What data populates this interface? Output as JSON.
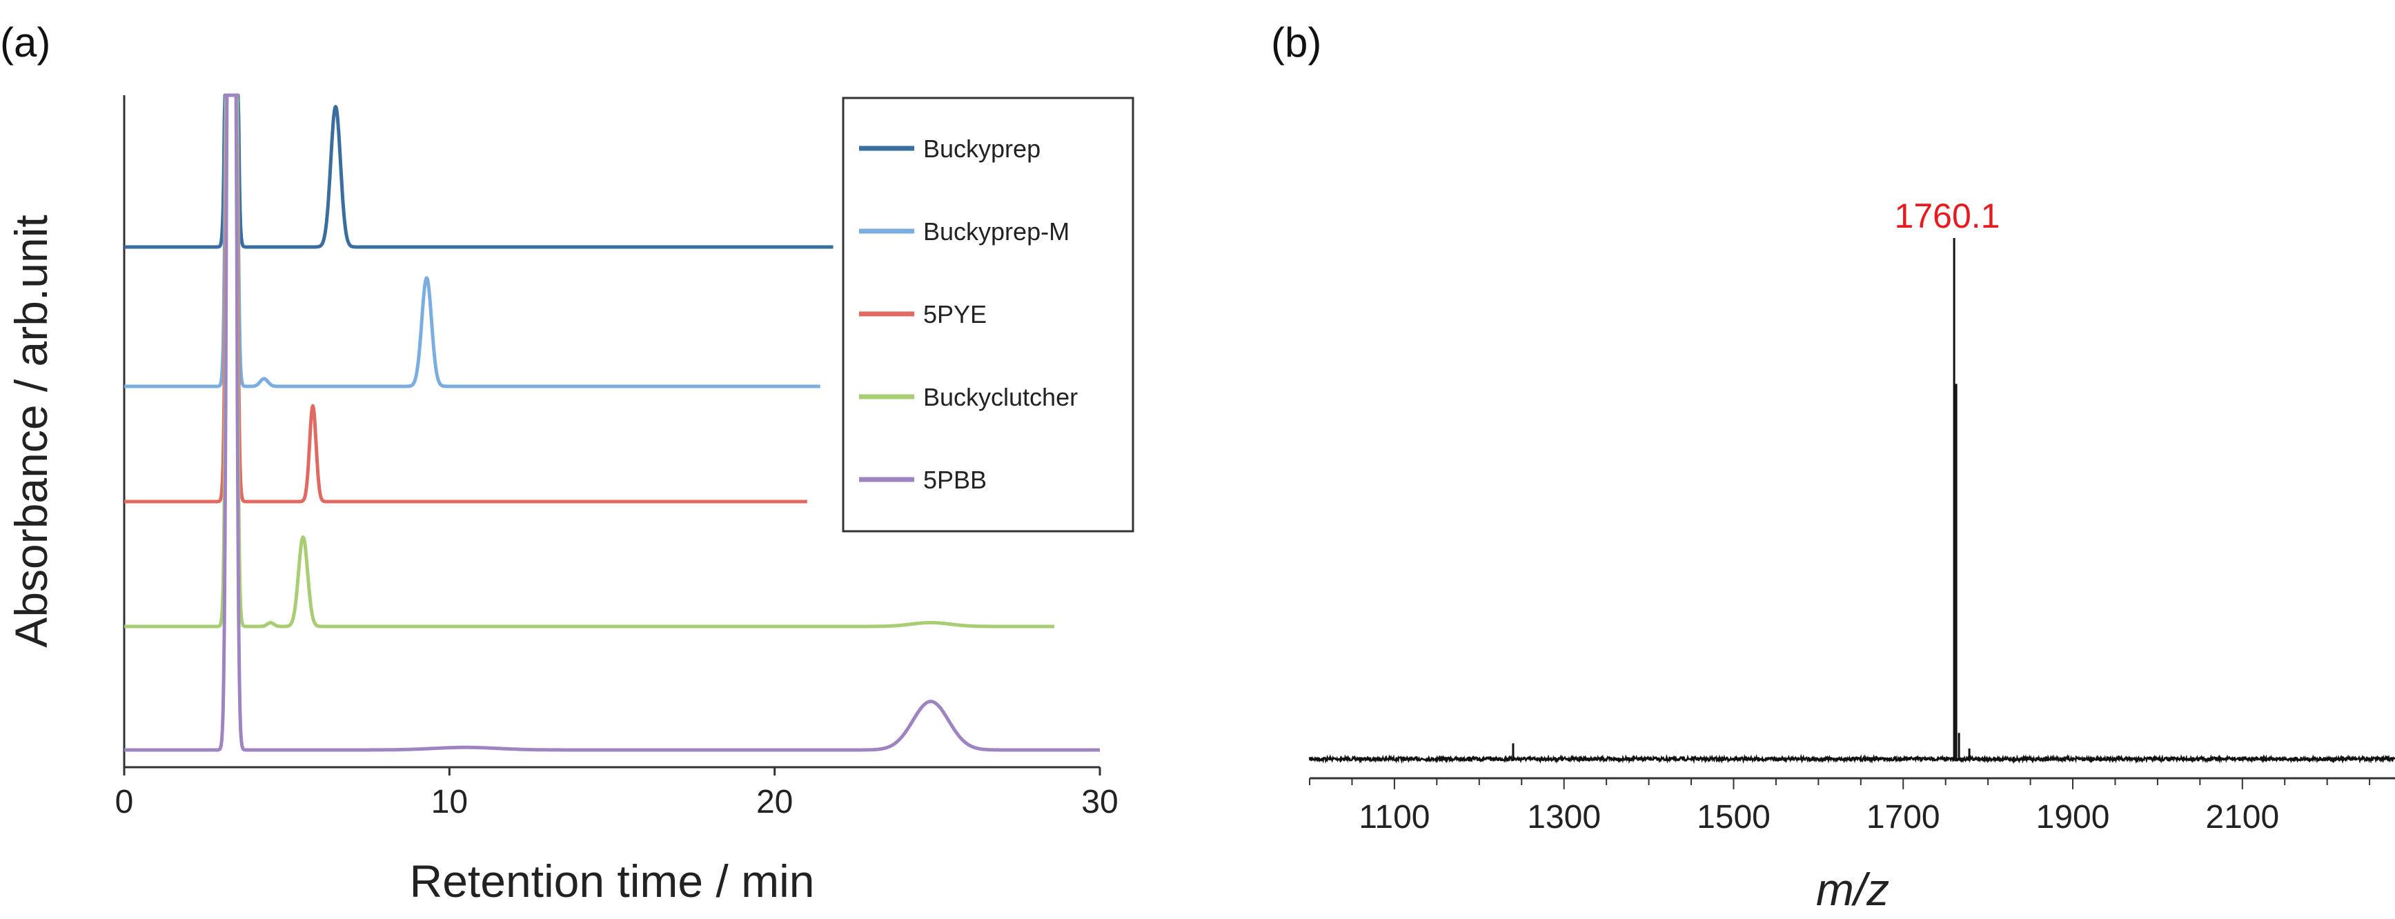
{
  "chart_data": [
    {
      "panel": "(a)",
      "type": "line",
      "title": "",
      "xlabel": "Retention time / min",
      "ylabel": "Absorbance / arb.unit",
      "xlim": [
        0,
        30
      ],
      "xticks": [
        0,
        10,
        20,
        30
      ],
      "legend_position": "top-right",
      "series": [
        {
          "name": "Buckyprep",
          "color": "#3a6e9e",
          "baseline": 4,
          "x_end": 21.8,
          "peaks": [
            {
              "x": 6.5,
              "h": 1.1,
              "w": 0.15
            }
          ]
        },
        {
          "name": "Buckyprep-M",
          "color": "#7aaee0",
          "baseline": 3,
          "x_end": 21.4,
          "peaks": [
            {
              "x": 9.3,
              "h": 0.85,
              "w": 0.15
            },
            {
              "x": 4.3,
              "h": 0.06,
              "w": 0.12
            }
          ]
        },
        {
          "name": "5PYE",
          "color": "#e06a62",
          "baseline": 2,
          "x_end": 21.0,
          "peaks": [
            {
              "x": 5.8,
              "h": 0.75,
              "w": 0.1
            }
          ]
        },
        {
          "name": "Buckyclutcher",
          "color": "#a9cd73",
          "baseline": 1,
          "x_end": 28.6,
          "peaks": [
            {
              "x": 5.5,
              "h": 0.7,
              "w": 0.14
            },
            {
              "x": 4.5,
              "h": 0.03,
              "w": 0.1
            },
            {
              "x": 24.8,
              "h": 0.03,
              "w": 0.6
            }
          ]
        },
        {
          "name": "5PBB",
          "color": "#9f84c2",
          "baseline": 0,
          "x_end": 30.0,
          "peaks": [
            {
              "x": 24.8,
              "h": 0.38,
              "w": 0.55
            },
            {
              "x": 10.5,
              "h": 0.02,
              "w": 1.0
            }
          ]
        }
      ],
      "solvent_peak_x": 3.3
    },
    {
      "panel": "(b)",
      "type": "line",
      "title": "",
      "xlabel": "m/z",
      "ylabel": "",
      "xlim": [
        1000,
        2280
      ],
      "xticks": [
        1100,
        1300,
        1500,
        1700,
        1900,
        2100
      ],
      "peaks": [
        {
          "x": 1760.1,
          "intensity": 1.0,
          "label": "1760.1"
        },
        {
          "x": 1240,
          "intensity": 0.03
        },
        {
          "x": 1778,
          "intensity": 0.02
        }
      ],
      "annotation": "1760.1",
      "annotation_color": "#e8191f",
      "line_color": "#111111"
    }
  ]
}
